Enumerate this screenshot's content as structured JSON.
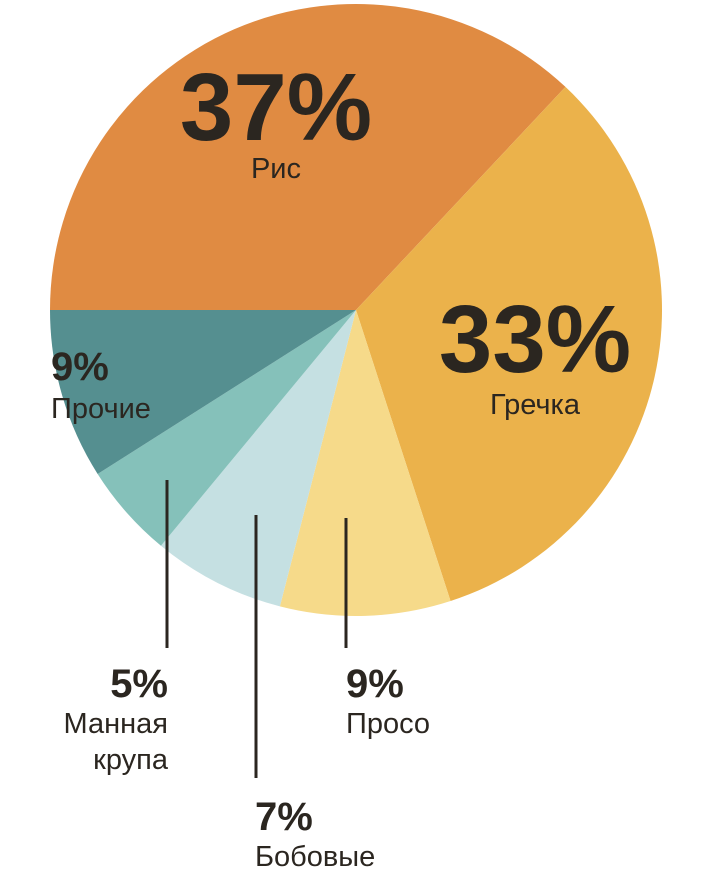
{
  "chart_data": {
    "type": "pie",
    "start": "9 o'clock, clockwise",
    "slices": [
      {
        "label": "Рис",
        "value": 37,
        "pct_label": "37%",
        "color": "#E08B42"
      },
      {
        "label": "Гречка",
        "value": 33,
        "pct_label": "33%",
        "color": "#EBB24B"
      },
      {
        "label": "Просо",
        "value": 9,
        "pct_label": "9%",
        "color": "#F6DA8A"
      },
      {
        "label": "Бобовые",
        "value": 7,
        "pct_label": "7%",
        "color": "#C5E0E2"
      },
      {
        "label": "Манная крупа",
        "label_lines": [
          "Манная",
          "крупа"
        ],
        "value": 5,
        "pct_label": "5%",
        "color": "#85C1BA"
      },
      {
        "label": "Прочие",
        "value": 9,
        "pct_label": "9%",
        "color": "#558F90"
      }
    ],
    "text_color": "#2B2620"
  }
}
